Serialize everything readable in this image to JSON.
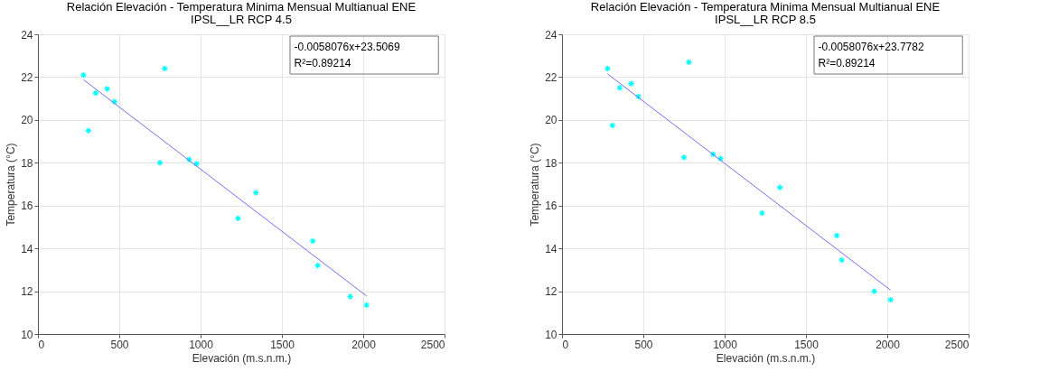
{
  "chart_data": [
    {
      "type": "scatter",
      "title": "Relación Elevación - Temperatura Minima Mensual Multianual ENE",
      "subtitle": "IPSL__LR RCP 4.5",
      "xlabel": "Elevación (m.s.n.m.)",
      "ylabel": "Temperatura (°C)",
      "xlim": [
        0,
        2500
      ],
      "xticks": [
        0,
        500,
        1000,
        1500,
        2000,
        2500
      ],
      "ylim": [
        10,
        24
      ],
      "yticks": [
        10,
        12,
        14,
        16,
        18,
        20,
        22,
        24
      ],
      "grid": true,
      "annotations": [
        "-0.0058076x+23.5069",
        "R²=0.89214"
      ],
      "series": [
        {
          "color": "#00ffff",
          "marker": "cross",
          "x": [
            280,
            310,
            355,
            425,
            470,
            750,
            780,
            930,
            975,
            1230,
            1340,
            1690,
            1720,
            1920,
            2020
          ],
          "values": [
            22.1,
            19.5,
            21.25,
            21.45,
            20.85,
            18.0,
            22.4,
            18.15,
            17.95,
            15.4,
            16.6,
            14.35,
            13.2,
            11.75,
            11.35
          ]
        },
        {
          "type": "line",
          "color": "#6f6ff2",
          "x": [
            280,
            2020
          ],
          "values": [
            21.88,
            11.78
          ]
        }
      ]
    },
    {
      "type": "scatter",
      "title": "Relación Elevación - Temperatura Minima Mensual Multianual ENE",
      "subtitle": "IPSL__LR RCP 8.5",
      "xlabel": "Elevación (m.s.n.m.)",
      "ylabel": "Temperatura (°C)",
      "xlim": [
        0,
        2500
      ],
      "xticks": [
        0,
        500,
        1000,
        1500,
        2000,
        2500
      ],
      "ylim": [
        10,
        24
      ],
      "yticks": [
        10,
        12,
        14,
        16,
        18,
        20,
        22,
        24
      ],
      "grid": true,
      "annotations": [
        "-0.0058076x+23.7782",
        "R²=0.89214"
      ],
      "series": [
        {
          "color": "#00ffff",
          "marker": "cross",
          "x": [
            280,
            310,
            355,
            425,
            470,
            750,
            780,
            930,
            975,
            1230,
            1340,
            1690,
            1720,
            1920,
            2020
          ],
          "values": [
            22.4,
            19.75,
            21.5,
            21.7,
            21.1,
            18.25,
            22.7,
            18.4,
            18.2,
            15.65,
            16.85,
            14.6,
            13.45,
            12.0,
            11.6
          ]
        },
        {
          "type": "line",
          "color": "#6f6ff2",
          "x": [
            280,
            2020
          ],
          "values": [
            22.15,
            12.05
          ]
        }
      ]
    }
  ]
}
